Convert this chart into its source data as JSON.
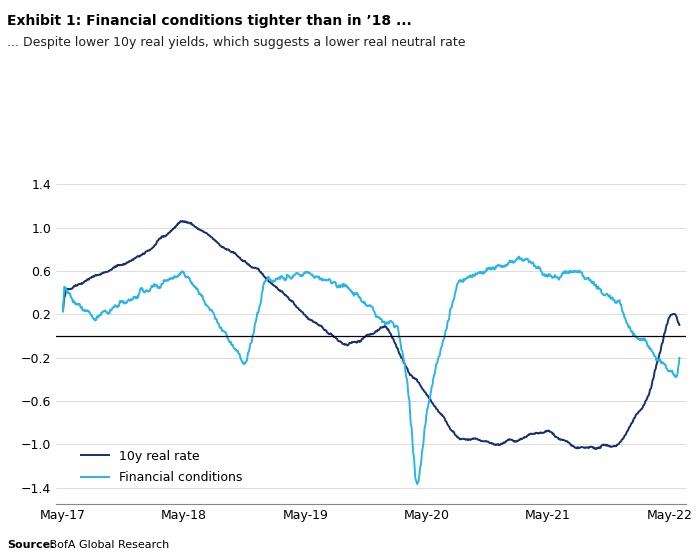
{
  "title_bold": "Exhibit 1: Financial conditions tighter than in ’18 ...",
  "title_sub": "... Despite lower 10y real yields, which suggests a lower real neutral rate",
  "source_bold": "Source:",
  "source_rest": " BofA Global Research",
  "ylim": [
    -1.55,
    1.55
  ],
  "yticks": [
    -1.4,
    -1.0,
    -0.6,
    -0.2,
    0.2,
    0.6,
    1.0,
    1.4
  ],
  "color_real_rate": "#1a2f6e",
  "color_fin_cond": "#29b5e8",
  "legend_labels": [
    "10y real rate",
    "Financial conditions"
  ],
  "background_color": "#ffffff"
}
